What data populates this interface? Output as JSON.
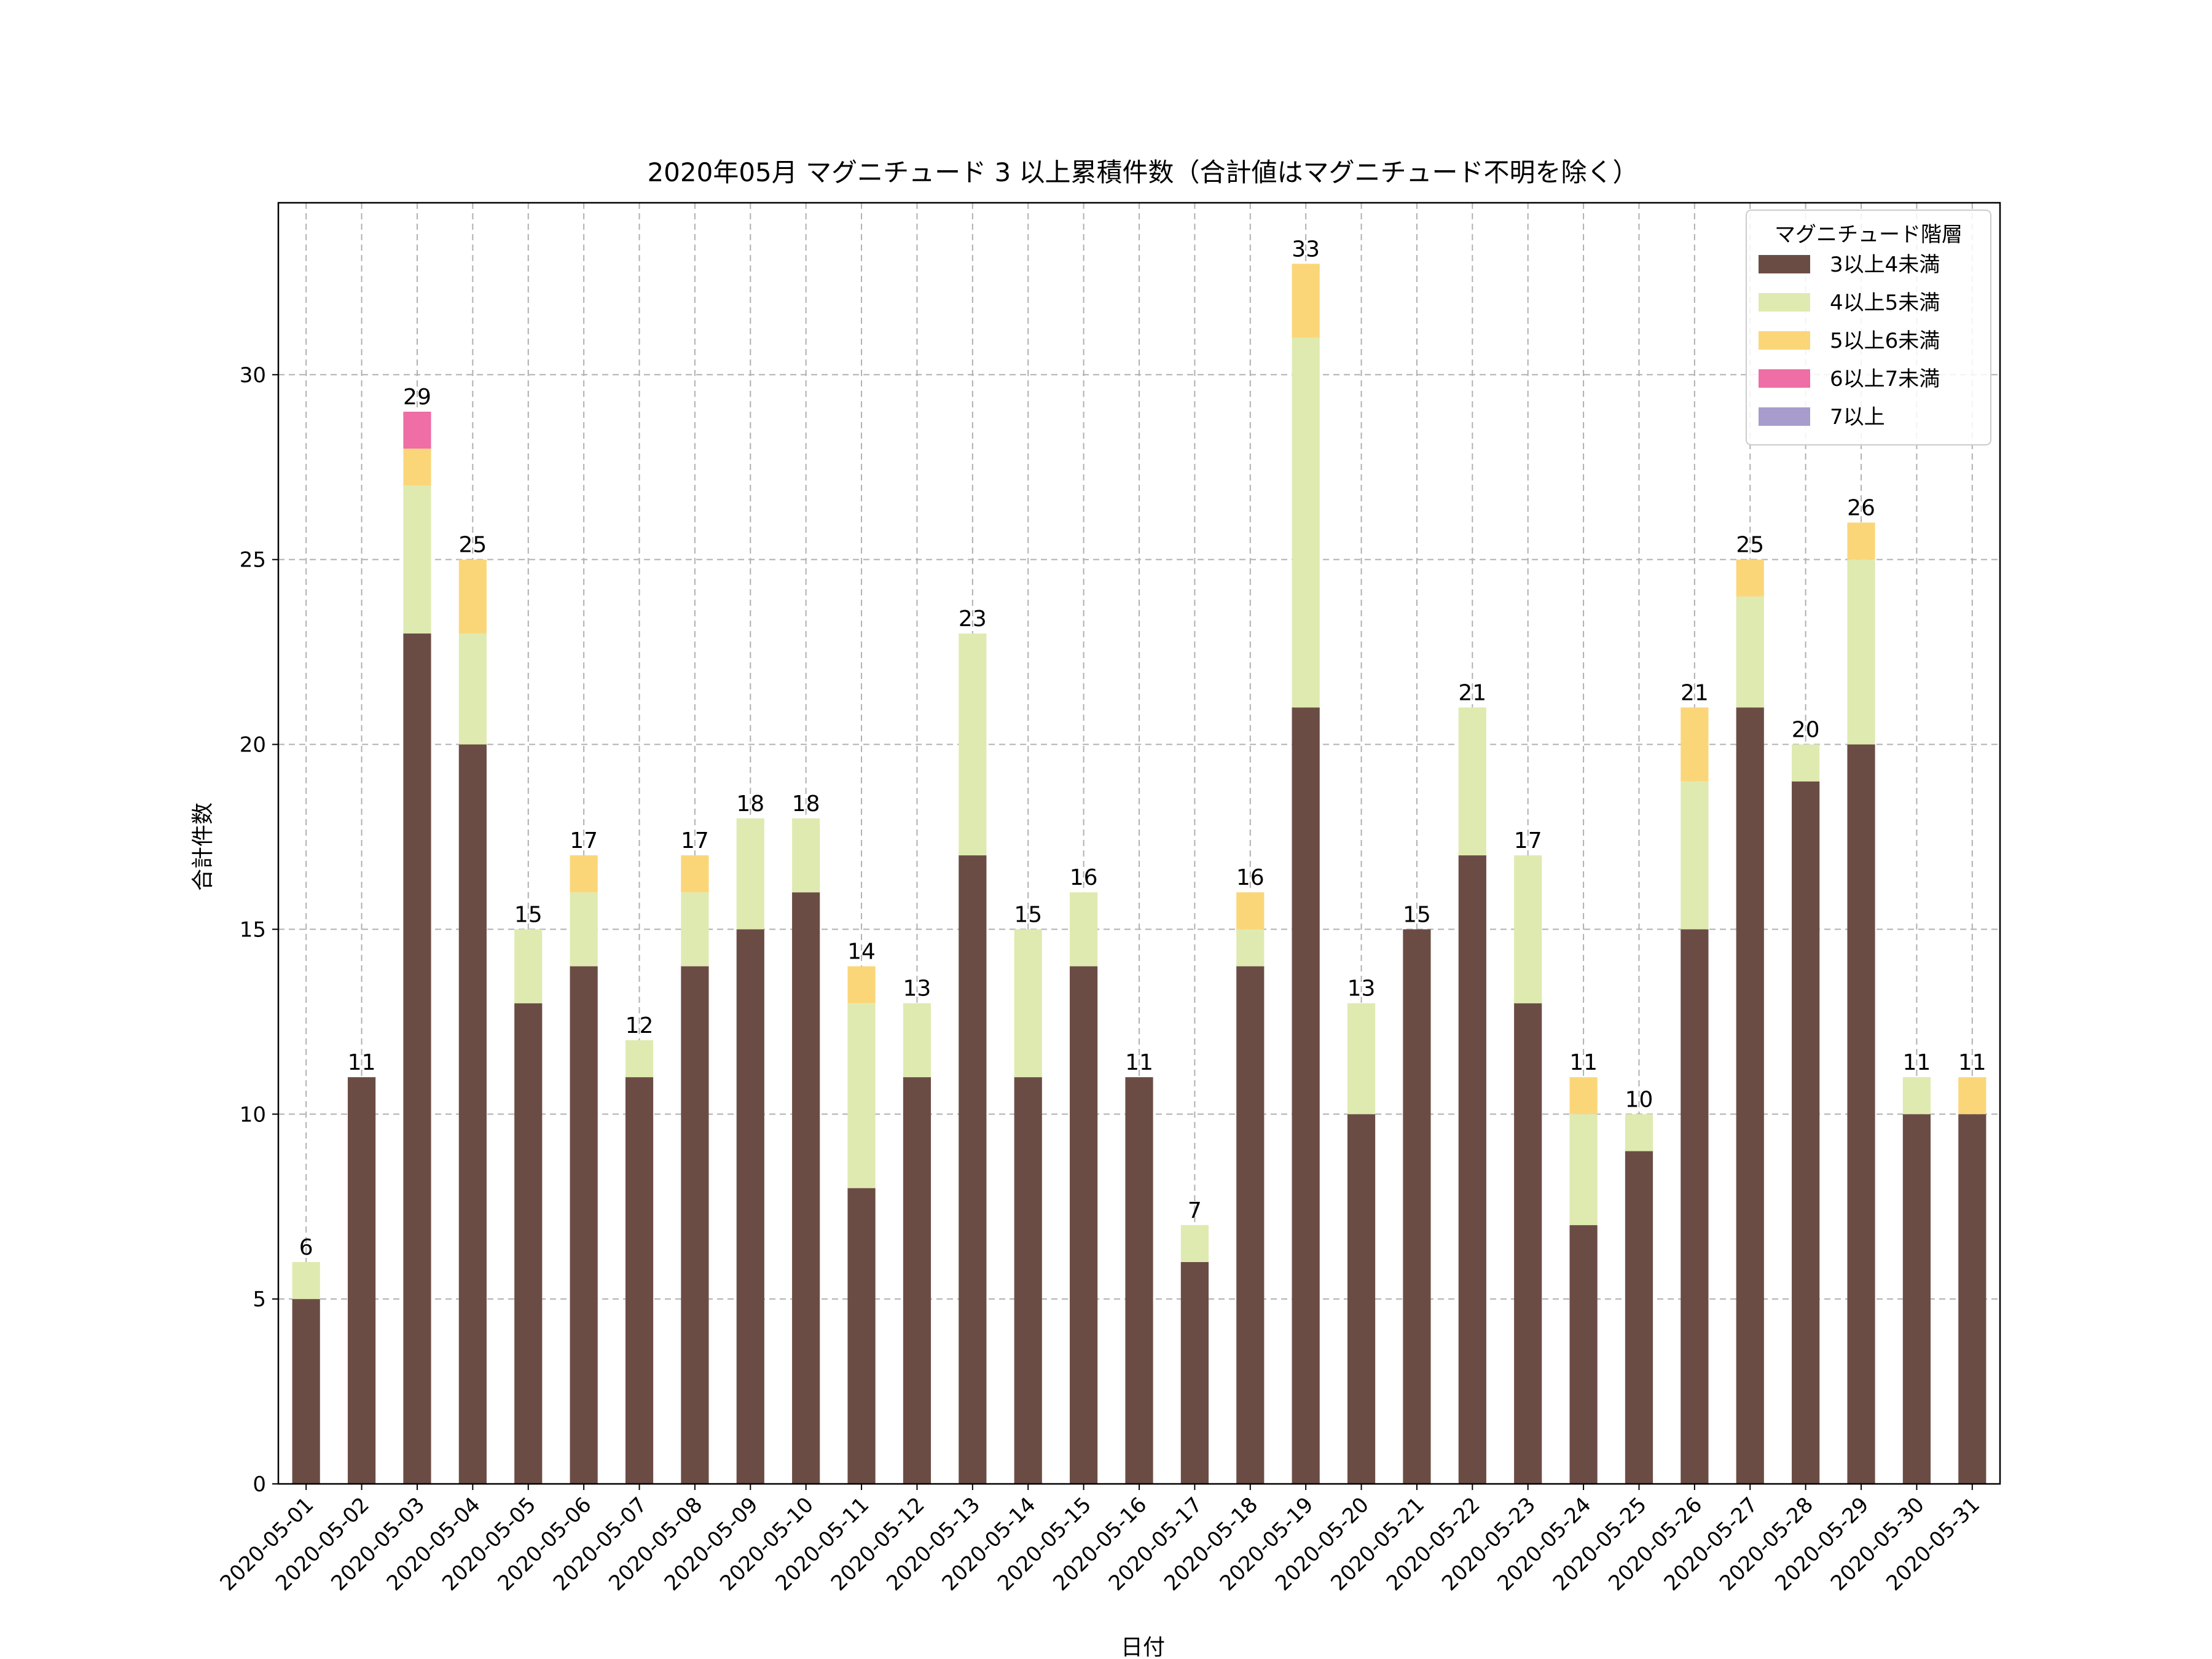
{
  "chart_data": {
    "type": "bar",
    "stacked": true,
    "title": "2020年05月 マグニチュード 3 以上累積件数（合計値はマグニチュード不明を除く）",
    "xlabel": "日付",
    "ylabel": "合計件数",
    "ylim": [
      0,
      34.65
    ],
    "yticks": [
      0,
      5,
      10,
      15,
      20,
      25,
      30
    ],
    "grid": true,
    "legend": {
      "title": "マグニチュード階層",
      "position": "top-right"
    },
    "categories": [
      "2020-05-01",
      "2020-05-02",
      "2020-05-03",
      "2020-05-04",
      "2020-05-05",
      "2020-05-06",
      "2020-05-07",
      "2020-05-08",
      "2020-05-09",
      "2020-05-10",
      "2020-05-11",
      "2020-05-12",
      "2020-05-13",
      "2020-05-14",
      "2020-05-15",
      "2020-05-16",
      "2020-05-17",
      "2020-05-18",
      "2020-05-19",
      "2020-05-20",
      "2020-05-21",
      "2020-05-22",
      "2020-05-23",
      "2020-05-24",
      "2020-05-25",
      "2020-05-26",
      "2020-05-27",
      "2020-05-28",
      "2020-05-29",
      "2020-05-30",
      "2020-05-31"
    ],
    "series": [
      {
        "name": "3以上4未満",
        "color": "#6b4c45",
        "values": [
          5,
          11,
          23,
          20,
          13,
          14,
          11,
          14,
          15,
          16,
          8,
          11,
          17,
          11,
          14,
          11,
          6,
          14,
          21,
          10,
          15,
          17,
          13,
          7,
          9,
          15,
          21,
          19,
          20,
          10,
          10
        ]
      },
      {
        "name": "4以上5未満",
        "color": "#dfeab0",
        "values": [
          1,
          0,
          4,
          3,
          2,
          2,
          1,
          2,
          3,
          2,
          5,
          2,
          6,
          4,
          2,
          0,
          1,
          1,
          10,
          3,
          0,
          4,
          4,
          3,
          1,
          4,
          3,
          1,
          5,
          1,
          0
        ]
      },
      {
        "name": "5以上6未満",
        "color": "#fbd679",
        "values": [
          0,
          0,
          1,
          2,
          0,
          1,
          0,
          1,
          0,
          0,
          1,
          0,
          0,
          0,
          0,
          0,
          0,
          1,
          2,
          0,
          0,
          0,
          0,
          1,
          0,
          2,
          1,
          0,
          1,
          0,
          1
        ]
      },
      {
        "name": "6以上7未満",
        "color": "#ee6ea5",
        "values": [
          0,
          0,
          1,
          0,
          0,
          0,
          0,
          0,
          0,
          0,
          0,
          0,
          0,
          0,
          0,
          0,
          0,
          0,
          0,
          0,
          0,
          0,
          0,
          0,
          0,
          0,
          0,
          0,
          0,
          0,
          0
        ]
      },
      {
        "name": "7以上",
        "color": "#a89ccc",
        "values": [
          0,
          0,
          0,
          0,
          0,
          0,
          0,
          0,
          0,
          0,
          0,
          0,
          0,
          0,
          0,
          0,
          0,
          0,
          0,
          0,
          0,
          0,
          0,
          0,
          0,
          0,
          0,
          0,
          0,
          0,
          0
        ]
      }
    ],
    "totals": [
      6,
      11,
      29,
      25,
      15,
      17,
      12,
      17,
      18,
      18,
      14,
      13,
      23,
      15,
      16,
      11,
      7,
      16,
      33,
      13,
      15,
      21,
      17,
      11,
      10,
      21,
      25,
      20,
      26,
      11,
      11
    ]
  }
}
